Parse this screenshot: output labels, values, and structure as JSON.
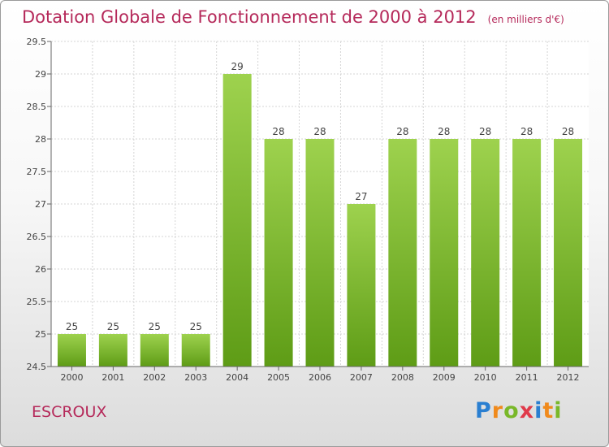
{
  "header": {
    "title": "Dotation Globale de Fonctionnement de 2000 à 2012",
    "unit": "(en milliers d'€)"
  },
  "commune": "ESCROUX",
  "logo": {
    "text": "Proxiti",
    "letters": [
      {
        "ch": "P",
        "color": "#2a7fd1"
      },
      {
        "ch": "r",
        "color": "#f08a1c"
      },
      {
        "ch": "o",
        "color": "#79b829"
      },
      {
        "ch": "x",
        "color": "#e03a4a"
      },
      {
        "ch": "i",
        "color": "#2a7fd1"
      },
      {
        "ch": "t",
        "color": "#f08a1c"
      },
      {
        "ch": "i",
        "color": "#79b829"
      }
    ]
  },
  "chart_data": {
    "type": "bar",
    "categories": [
      "2000",
      "2001",
      "2002",
      "2003",
      "2004",
      "2005",
      "2006",
      "2007",
      "2008",
      "2009",
      "2010",
      "2011",
      "2012"
    ],
    "values": [
      25,
      25,
      25,
      25,
      29,
      28,
      28,
      27,
      28,
      28,
      28,
      28,
      28
    ],
    "ylim": [
      24.5,
      29.5
    ],
    "yticks": [
      "24.5",
      "25",
      "25.5",
      "26",
      "26.5",
      "27",
      "27.5",
      "28",
      "28.5",
      "29",
      "29.5"
    ],
    "grid": true,
    "bar_color_light": "#9ed24e",
    "bar_color_dark": "#5e9c16"
  }
}
